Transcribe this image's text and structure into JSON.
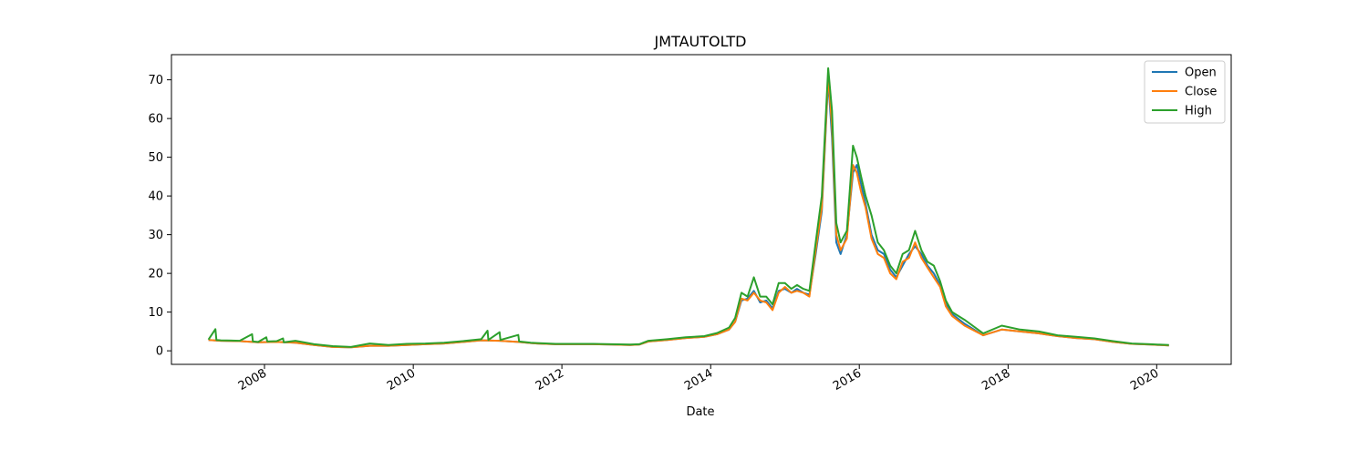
{
  "chart_data": {
    "type": "line",
    "title": "JMTAUTOLTD",
    "xlabel": "Date",
    "ylabel": "",
    "xlim": [
      "2006-10-01",
      "2021-01-01"
    ],
    "ylim": [
      -3.5,
      76.5
    ],
    "x_ticks": [
      "2008",
      "2010",
      "2012",
      "2014",
      "2016",
      "2018",
      "2020"
    ],
    "y_ticks": [
      0,
      10,
      20,
      30,
      40,
      50,
      60,
      70
    ],
    "grid": false,
    "legend_position": "top-right",
    "series": [
      {
        "name": "Open",
        "color": "#1f77b4",
        "points": [
          [
            "2007-04-01",
            2.8
          ],
          [
            "2007-06-01",
            2.6
          ],
          [
            "2007-09-01",
            2.5
          ],
          [
            "2007-12-01",
            2.2
          ],
          [
            "2008-03-01",
            2.3
          ],
          [
            "2008-06-01",
            2.1
          ],
          [
            "2008-09-01",
            1.5
          ],
          [
            "2008-12-01",
            1.0
          ],
          [
            "2009-03-01",
            0.9
          ],
          [
            "2009-06-01",
            1.3
          ],
          [
            "2009-09-01",
            1.3
          ],
          [
            "2009-12-01",
            1.5
          ],
          [
            "2010-03-01",
            1.7
          ],
          [
            "2010-06-01",
            1.9
          ],
          [
            "2010-09-01",
            2.3
          ],
          [
            "2010-12-01",
            2.7
          ],
          [
            "2011-03-01",
            2.6
          ],
          [
            "2011-06-01",
            2.3
          ],
          [
            "2011-08-01",
            2.0
          ],
          [
            "2011-09-01",
            1.9
          ],
          [
            "2011-12-01",
            1.7
          ],
          [
            "2012-03-01",
            1.7
          ],
          [
            "2012-06-01",
            1.7
          ],
          [
            "2012-09-01",
            1.6
          ],
          [
            "2012-12-01",
            1.5
          ],
          [
            "2013-01-15",
            1.6
          ],
          [
            "2013-03-01",
            2.4
          ],
          [
            "2013-06-01",
            2.8
          ],
          [
            "2013-09-01",
            3.3
          ],
          [
            "2013-12-01",
            3.6
          ],
          [
            "2014-02-01",
            4.3
          ],
          [
            "2014-04-01",
            5.5
          ],
          [
            "2014-05-01",
            7.5
          ],
          [
            "2014-06-01",
            13.0
          ],
          [
            "2014-07-01",
            13.5
          ],
          [
            "2014-08-01",
            15.5
          ],
          [
            "2014-09-01",
            12.5
          ],
          [
            "2014-10-01",
            13.0
          ],
          [
            "2014-11-01",
            11.0
          ],
          [
            "2014-12-01",
            15.5
          ],
          [
            "2015-01-01",
            16.0
          ],
          [
            "2015-02-01",
            15.0
          ],
          [
            "2015-03-01",
            16.0
          ],
          [
            "2015-04-01",
            15.0
          ],
          [
            "2015-05-01",
            14.5
          ],
          [
            "2015-06-01",
            25.0
          ],
          [
            "2015-07-01",
            36.0
          ],
          [
            "2015-08-01",
            70.0
          ],
          [
            "2015-08-20",
            55.0
          ],
          [
            "2015-09-10",
            28.0
          ],
          [
            "2015-10-01",
            25.0
          ],
          [
            "2015-11-01",
            30.0
          ],
          [
            "2015-12-01",
            46.0
          ],
          [
            "2015-12-20",
            48.0
          ],
          [
            "2016-01-10",
            43.0
          ],
          [
            "2016-02-01",
            38.0
          ],
          [
            "2016-03-01",
            30.0
          ],
          [
            "2016-04-01",
            26.0
          ],
          [
            "2016-05-01",
            25.0
          ],
          [
            "2016-06-01",
            21.0
          ],
          [
            "2016-07-01",
            19.0
          ],
          [
            "2016-08-01",
            22.0
          ],
          [
            "2016-09-01",
            25.0
          ],
          [
            "2016-10-01",
            27.0
          ],
          [
            "2016-11-01",
            25.0
          ],
          [
            "2016-12-01",
            22.0
          ],
          [
            "2017-01-01",
            20.0
          ],
          [
            "2017-02-01",
            17.0
          ],
          [
            "2017-03-01",
            12.0
          ],
          [
            "2017-04-01",
            9.5
          ],
          [
            "2017-06-01",
            7.0
          ],
          [
            "2017-09-01",
            4.0
          ],
          [
            "2017-12-01",
            5.5
          ],
          [
            "2018-03-01",
            5.0
          ],
          [
            "2018-06-01",
            4.5
          ],
          [
            "2018-09-01",
            3.8
          ],
          [
            "2018-12-01",
            3.3
          ],
          [
            "2019-03-01",
            3.0
          ],
          [
            "2019-06-01",
            2.3
          ],
          [
            "2019-09-01",
            1.8
          ],
          [
            "2019-12-01",
            1.6
          ],
          [
            "2020-03-01",
            1.4
          ]
        ]
      },
      {
        "name": "Close",
        "color": "#ff7f0e",
        "points": [
          [
            "2007-04-01",
            2.8
          ],
          [
            "2007-06-01",
            2.6
          ],
          [
            "2007-09-01",
            2.5
          ],
          [
            "2007-12-01",
            2.2
          ],
          [
            "2008-03-01",
            2.3
          ],
          [
            "2008-06-01",
            2.1
          ],
          [
            "2008-09-01",
            1.5
          ],
          [
            "2008-12-01",
            1.0
          ],
          [
            "2009-03-01",
            0.9
          ],
          [
            "2009-06-01",
            1.3
          ],
          [
            "2009-09-01",
            1.3
          ],
          [
            "2009-12-01",
            1.5
          ],
          [
            "2010-03-01",
            1.7
          ],
          [
            "2010-06-01",
            1.9
          ],
          [
            "2010-09-01",
            2.3
          ],
          [
            "2010-12-01",
            2.7
          ],
          [
            "2011-03-01",
            2.6
          ],
          [
            "2011-06-01",
            2.3
          ],
          [
            "2011-08-01",
            2.0
          ],
          [
            "2011-09-01",
            1.9
          ],
          [
            "2011-12-01",
            1.7
          ],
          [
            "2012-03-01",
            1.7
          ],
          [
            "2012-06-01",
            1.7
          ],
          [
            "2012-09-01",
            1.6
          ],
          [
            "2012-12-01",
            1.5
          ],
          [
            "2013-01-15",
            1.6
          ],
          [
            "2013-03-01",
            2.4
          ],
          [
            "2013-06-01",
            2.8
          ],
          [
            "2013-09-01",
            3.3
          ],
          [
            "2013-12-01",
            3.6
          ],
          [
            "2014-02-01",
            4.3
          ],
          [
            "2014-04-01",
            5.5
          ],
          [
            "2014-05-01",
            7.5
          ],
          [
            "2014-06-01",
            13.5
          ],
          [
            "2014-07-01",
            13.0
          ],
          [
            "2014-08-01",
            15.0
          ],
          [
            "2014-09-01",
            13.0
          ],
          [
            "2014-10-01",
            12.5
          ],
          [
            "2014-11-01",
            10.5
          ],
          [
            "2014-12-01",
            15.0
          ],
          [
            "2015-01-01",
            16.5
          ],
          [
            "2015-02-01",
            15.0
          ],
          [
            "2015-03-01",
            15.5
          ],
          [
            "2015-04-01",
            15.0
          ],
          [
            "2015-05-01",
            14.0
          ],
          [
            "2015-06-01",
            26.0
          ],
          [
            "2015-07-01",
            37.0
          ],
          [
            "2015-08-01",
            71.0
          ],
          [
            "2015-08-20",
            58.0
          ],
          [
            "2015-09-10",
            30.0
          ],
          [
            "2015-10-01",
            26.0
          ],
          [
            "2015-11-01",
            29.0
          ],
          [
            "2015-12-01",
            48.0
          ],
          [
            "2015-12-20",
            46.0
          ],
          [
            "2016-01-10",
            41.0
          ],
          [
            "2016-02-01",
            37.0
          ],
          [
            "2016-03-01",
            29.0
          ],
          [
            "2016-04-01",
            25.0
          ],
          [
            "2016-05-01",
            24.0
          ],
          [
            "2016-06-01",
            20.0
          ],
          [
            "2016-07-01",
            18.5
          ],
          [
            "2016-08-01",
            23.0
          ],
          [
            "2016-09-01",
            24.0
          ],
          [
            "2016-10-01",
            28.0
          ],
          [
            "2016-11-01",
            24.0
          ],
          [
            "2016-12-01",
            21.5
          ],
          [
            "2017-01-01",
            19.0
          ],
          [
            "2017-02-01",
            16.5
          ],
          [
            "2017-03-01",
            11.5
          ],
          [
            "2017-04-01",
            9.0
          ],
          [
            "2017-06-01",
            6.5
          ],
          [
            "2017-09-01",
            4.0
          ],
          [
            "2017-12-01",
            5.5
          ],
          [
            "2018-03-01",
            5.0
          ],
          [
            "2018-06-01",
            4.5
          ],
          [
            "2018-09-01",
            3.8
          ],
          [
            "2018-12-01",
            3.3
          ],
          [
            "2019-03-01",
            3.0
          ],
          [
            "2019-06-01",
            2.3
          ],
          [
            "2019-09-01",
            1.8
          ],
          [
            "2019-12-01",
            1.6
          ],
          [
            "2020-03-01",
            1.4
          ]
        ]
      },
      {
        "name": "High",
        "color": "#2ca02c",
        "points": [
          [
            "2007-04-01",
            2.9
          ],
          [
            "2007-05-05",
            5.6
          ],
          [
            "2007-05-10",
            2.8
          ],
          [
            "2007-06-01",
            2.7
          ],
          [
            "2007-09-01",
            2.6
          ],
          [
            "2007-11-01",
            4.3
          ],
          [
            "2007-11-05",
            2.4
          ],
          [
            "2007-12-01",
            2.3
          ],
          [
            "2008-01-10",
            3.5
          ],
          [
            "2008-01-15",
            2.4
          ],
          [
            "2008-03-01",
            2.5
          ],
          [
            "2008-04-01",
            3.2
          ],
          [
            "2008-04-05",
            2.2
          ],
          [
            "2008-06-01",
            2.6
          ],
          [
            "2008-09-01",
            1.7
          ],
          [
            "2008-12-01",
            1.2
          ],
          [
            "2009-03-01",
            1.0
          ],
          [
            "2009-06-01",
            1.9
          ],
          [
            "2009-09-01",
            1.5
          ],
          [
            "2009-12-01",
            1.8
          ],
          [
            "2010-03-01",
            1.9
          ],
          [
            "2010-06-01",
            2.1
          ],
          [
            "2010-09-01",
            2.5
          ],
          [
            "2010-12-01",
            3.0
          ],
          [
            "2011-01-01",
            5.2
          ],
          [
            "2011-01-05",
            2.8
          ],
          [
            "2011-03-01",
            4.8
          ],
          [
            "2011-03-05",
            2.8
          ],
          [
            "2011-06-01",
            4.1
          ],
          [
            "2011-06-05",
            2.4
          ],
          [
            "2011-08-01",
            2.1
          ],
          [
            "2011-09-01",
            2.0
          ],
          [
            "2011-12-01",
            1.8
          ],
          [
            "2012-03-01",
            1.8
          ],
          [
            "2012-06-01",
            1.8
          ],
          [
            "2012-09-01",
            1.7
          ],
          [
            "2012-12-01",
            1.6
          ],
          [
            "2013-01-15",
            1.7
          ],
          [
            "2013-03-01",
            2.6
          ],
          [
            "2013-06-01",
            3.0
          ],
          [
            "2013-09-01",
            3.5
          ],
          [
            "2013-12-01",
            3.8
          ],
          [
            "2014-02-01",
            4.6
          ],
          [
            "2014-04-01",
            6.0
          ],
          [
            "2014-05-01",
            8.5
          ],
          [
            "2014-06-01",
            15.0
          ],
          [
            "2014-07-01",
            14.0
          ],
          [
            "2014-08-01",
            19.0
          ],
          [
            "2014-09-01",
            14.0
          ],
          [
            "2014-10-01",
            14.0
          ],
          [
            "2014-11-01",
            12.0
          ],
          [
            "2014-12-01",
            17.5
          ],
          [
            "2015-01-01",
            17.5
          ],
          [
            "2015-02-01",
            16.0
          ],
          [
            "2015-03-01",
            17.0
          ],
          [
            "2015-04-01",
            16.0
          ],
          [
            "2015-05-01",
            15.5
          ],
          [
            "2015-06-01",
            28.0
          ],
          [
            "2015-07-01",
            40.0
          ],
          [
            "2015-08-01",
            73.0
          ],
          [
            "2015-08-20",
            62.0
          ],
          [
            "2015-09-10",
            33.0
          ],
          [
            "2015-10-01",
            28.0
          ],
          [
            "2015-11-01",
            31.0
          ],
          [
            "2015-12-01",
            53.0
          ],
          [
            "2015-12-20",
            50.0
          ],
          [
            "2016-01-10",
            45.0
          ],
          [
            "2016-02-01",
            40.0
          ],
          [
            "2016-03-01",
            35.0
          ],
          [
            "2016-04-01",
            28.0
          ],
          [
            "2016-05-01",
            26.0
          ],
          [
            "2016-06-01",
            22.0
          ],
          [
            "2016-07-01",
            20.0
          ],
          [
            "2016-08-01",
            25.0
          ],
          [
            "2016-09-01",
            26.0
          ],
          [
            "2016-10-01",
            31.0
          ],
          [
            "2016-11-01",
            26.0
          ],
          [
            "2016-12-01",
            23.0
          ],
          [
            "2017-01-01",
            22.0
          ],
          [
            "2017-02-01",
            18.0
          ],
          [
            "2017-03-01",
            13.0
          ],
          [
            "2017-04-01",
            10.0
          ],
          [
            "2017-06-01",
            8.0
          ],
          [
            "2017-09-01",
            4.5
          ],
          [
            "2017-12-01",
            6.5
          ],
          [
            "2018-03-01",
            5.5
          ],
          [
            "2018-06-01",
            5.0
          ],
          [
            "2018-09-01",
            4.0
          ],
          [
            "2018-12-01",
            3.6
          ],
          [
            "2019-03-01",
            3.2
          ],
          [
            "2019-06-01",
            2.5
          ],
          [
            "2019-09-01",
            1.9
          ],
          [
            "2019-12-01",
            1.7
          ],
          [
            "2020-03-01",
            1.5
          ]
        ]
      }
    ]
  }
}
